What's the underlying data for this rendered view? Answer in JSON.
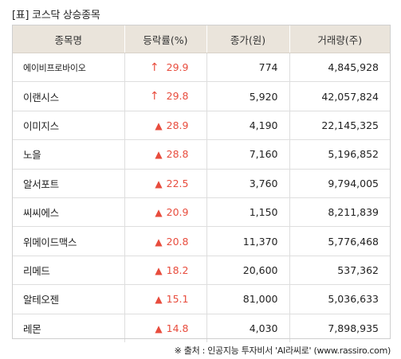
{
  "title": "[표] 코스닥 상승종목",
  "table": {
    "headers": [
      "종목명",
      "등락률(%)",
      "종가(원)",
      "거래량(주)"
    ],
    "rows": [
      {
        "name": "에이비프로바이오",
        "arrow": "↑",
        "rate": "29.9",
        "price": "774",
        "volume": "4,845,928"
      },
      {
        "name": "이랜시스",
        "arrow": "↑",
        "rate": "29.8",
        "price": "5,920",
        "volume": "42,057,824"
      },
      {
        "name": "이미지스",
        "arrow": "▲",
        "rate": "28.9",
        "price": "4,190",
        "volume": "22,145,325"
      },
      {
        "name": "노을",
        "arrow": "▲",
        "rate": "28.8",
        "price": "7,160",
        "volume": "5,196,852"
      },
      {
        "name": "알서포트",
        "arrow": "▲",
        "rate": "22.5",
        "price": "3,760",
        "volume": "9,794,005"
      },
      {
        "name": "씨씨에스",
        "arrow": "▲",
        "rate": "20.9",
        "price": "1,150",
        "volume": "8,211,839"
      },
      {
        "name": "위메이드맥스",
        "arrow": "▲",
        "rate": "20.8",
        "price": "11,370",
        "volume": "5,776,468"
      },
      {
        "name": "리메드",
        "arrow": "▲",
        "rate": "18.2",
        "price": "20,600",
        "volume": "537,362"
      },
      {
        "name": "알테오젠",
        "arrow": "▲",
        "rate": "15.1",
        "price": "81,000",
        "volume": "5,036,633"
      },
      {
        "name": "레몬",
        "arrow": "▲",
        "rate": "14.8",
        "price": "4,030",
        "volume": "7,898,935"
      }
    ]
  },
  "source": "※ 출처 : 인공지능 투자비서 'AI라씨로' (www.rassiro.com)",
  "colors": {
    "header_bg": "#eae4db",
    "rise": "#e84c3d",
    "border": "#dedede"
  }
}
